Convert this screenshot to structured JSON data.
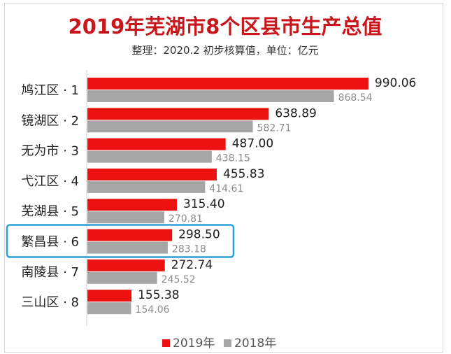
{
  "chart_data": {
    "type": "bar",
    "orientation": "horizontal",
    "title": "2019年芜湖市8个区县市生产总值",
    "subtitle": "整理：2020.2   初步核算值，单位：亿元",
    "categories": [
      "鸠江区 · 1",
      "镜湖区 · 2",
      "无为市 · 3",
      "弋江区 · 4",
      "芜湖县 · 5",
      "繁昌县 · 6",
      "南陵县 · 7",
      "三山区 · 8"
    ],
    "series": [
      {
        "name": "2019年",
        "values": [
          990.06,
          638.89,
          487.0,
          455.83,
          315.4,
          298.5,
          272.74,
          155.38
        ],
        "labels": [
          "990.06",
          "638.89",
          "487.00",
          "455.83",
          "315.40",
          "298.50",
          "272.74",
          "155.38"
        ],
        "color": "#ee1111"
      },
      {
        "name": "2018年",
        "values": [
          868.54,
          582.71,
          438.15,
          414.61,
          270.81,
          283.18,
          245.52,
          154.06
        ],
        "labels": [
          "868.54",
          "582.71",
          "438.15",
          "414.61",
          "270.81",
          "283.18",
          "245.52",
          "154.06"
        ],
        "color": "#a6a6a6"
      }
    ],
    "xlim": [
      0,
      1010
    ],
    "highlight_category": "繁昌县 · 6",
    "highlight_color": "#2a9fd8",
    "legend_position": "bottom",
    "grid": false
  }
}
